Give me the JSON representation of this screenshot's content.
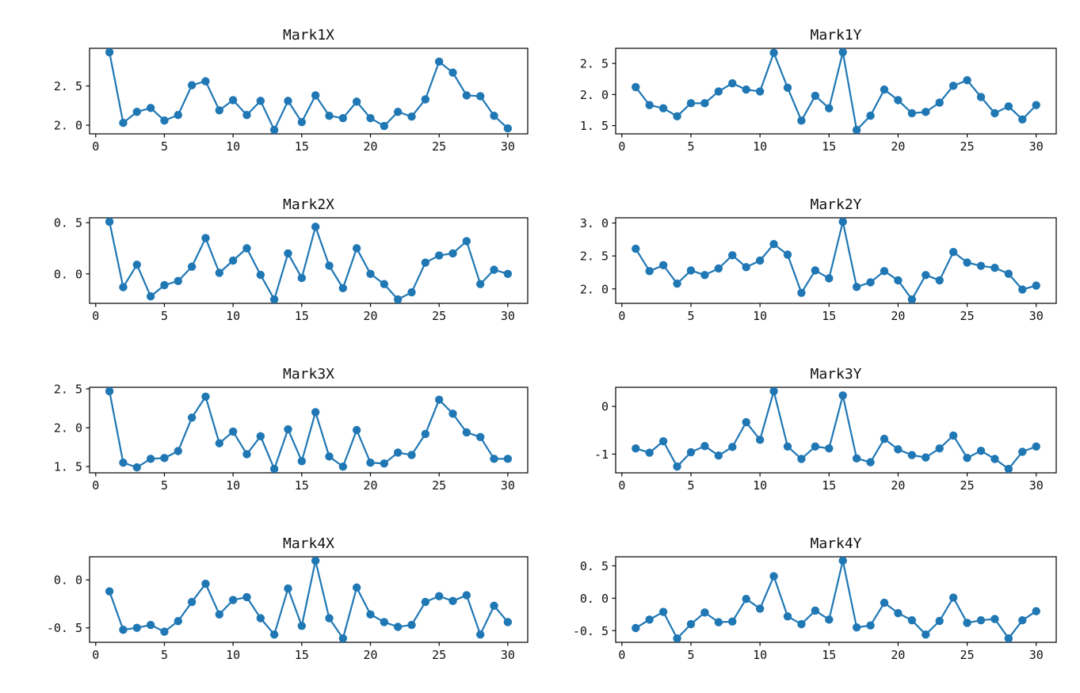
{
  "figure": {
    "background": "#ffffff",
    "accent_color": "#1f77b4",
    "text_color": "#111111"
  },
  "chart_data": [
    {
      "type": "line",
      "title": "Mark1X",
      "marker": "circle",
      "grid": false,
      "legend": null,
      "x": [
        1,
        2,
        3,
        4,
        5,
        6,
        7,
        8,
        9,
        10,
        11,
        12,
        13,
        14,
        15,
        16,
        17,
        18,
        19,
        20,
        21,
        22,
        23,
        24,
        25,
        26,
        27,
        28,
        29,
        30
      ],
      "values": [
        2.93,
        2.03,
        2.17,
        2.22,
        2.06,
        2.13,
        2.51,
        2.56,
        2.19,
        2.32,
        2.13,
        2.31,
        1.94,
        2.31,
        2.04,
        2.38,
        2.12,
        2.09,
        2.3,
        2.09,
        1.99,
        2.17,
        2.11,
        2.33,
        2.81,
        2.67,
        2.38,
        2.37,
        2.12,
        1.96
      ],
      "xlim": [
        -0.45,
        31.45
      ],
      "ylim": [
        1.89,
        2.98
      ],
      "xtick_values": [
        0,
        5,
        10,
        15,
        20,
        25,
        30
      ],
      "xtick_labels": [
        "0",
        "5",
        "10",
        "15",
        "20",
        "25",
        "30"
      ],
      "ytick_values": [
        2.0,
        2.5
      ],
      "ytick_labels": [
        "2. 0",
        "2. 5"
      ]
    },
    {
      "type": "line",
      "title": "Mark1Y",
      "marker": "circle",
      "grid": false,
      "legend": null,
      "x": [
        1,
        2,
        3,
        4,
        5,
        6,
        7,
        8,
        9,
        10,
        11,
        12,
        13,
        14,
        15,
        16,
        17,
        18,
        19,
        20,
        21,
        22,
        23,
        24,
        25,
        26,
        27,
        28,
        29,
        30
      ],
      "values": [
        2.12,
        1.83,
        1.78,
        1.65,
        1.86,
        1.86,
        2.05,
        2.18,
        2.08,
        2.05,
        2.67,
        2.11,
        1.58,
        1.98,
        1.78,
        2.68,
        1.43,
        1.66,
        2.08,
        1.91,
        1.7,
        1.72,
        1.87,
        2.14,
        2.23,
        1.96,
        1.7,
        1.81,
        1.6,
        1.83
      ],
      "xlim": [
        -0.45,
        31.45
      ],
      "ylim": [
        1.368,
        2.743
      ],
      "xtick_values": [
        0,
        5,
        10,
        15,
        20,
        25,
        30
      ],
      "xtick_labels": [
        "0",
        "5",
        "10",
        "15",
        "20",
        "25",
        "30"
      ],
      "ytick_values": [
        1.5,
        2.0,
        2.5
      ],
      "ytick_labels": [
        "1. 5",
        "2. 0",
        "2. 5"
      ]
    },
    {
      "type": "line",
      "title": "Mark2X",
      "marker": "circle",
      "grid": false,
      "legend": null,
      "x": [
        1,
        2,
        3,
        4,
        5,
        6,
        7,
        8,
        9,
        10,
        11,
        12,
        13,
        14,
        15,
        16,
        17,
        18,
        19,
        20,
        21,
        22,
        23,
        24,
        25,
        26,
        27,
        28,
        29,
        30
      ],
      "values": [
        0.51,
        -0.13,
        0.09,
        -0.22,
        -0.11,
        -0.07,
        0.07,
        0.35,
        0.01,
        0.13,
        0.25,
        -0.01,
        -0.25,
        0.2,
        -0.04,
        0.46,
        0.08,
        -0.14,
        0.25,
        0.0,
        -0.1,
        -0.25,
        -0.18,
        0.11,
        0.18,
        0.2,
        0.32,
        -0.1,
        0.04,
        0.0
      ],
      "xlim": [
        -0.45,
        31.45
      ],
      "ylim": [
        -0.288,
        0.548
      ],
      "xtick_values": [
        0,
        5,
        10,
        15,
        20,
        25,
        30
      ],
      "xtick_labels": [
        "0",
        "5",
        "10",
        "15",
        "20",
        "25",
        "30"
      ],
      "ytick_values": [
        0.0,
        0.5
      ],
      "ytick_labels": [
        "0. 0",
        "0. 5"
      ]
    },
    {
      "type": "line",
      "title": "Mark2Y",
      "marker": "circle",
      "grid": false,
      "legend": null,
      "x": [
        1,
        2,
        3,
        4,
        5,
        6,
        7,
        8,
        9,
        10,
        11,
        12,
        13,
        14,
        15,
        16,
        17,
        18,
        19,
        20,
        21,
        22,
        23,
        24,
        25,
        26,
        27,
        28,
        29,
        30
      ],
      "values": [
        2.61,
        2.27,
        2.36,
        2.08,
        2.28,
        2.21,
        2.31,
        2.51,
        2.33,
        2.43,
        2.68,
        2.52,
        1.94,
        2.28,
        2.16,
        3.02,
        2.03,
        2.1,
        2.27,
        2.13,
        1.84,
        2.21,
        2.13,
        2.56,
        2.4,
        2.35,
        2.32,
        2.23,
        1.99,
        2.05
      ],
      "xlim": [
        -0.45,
        31.45
      ],
      "ylim": [
        1.781,
        3.079
      ],
      "xtick_values": [
        0,
        5,
        10,
        15,
        20,
        25,
        30
      ],
      "xtick_labels": [
        "0",
        "5",
        "10",
        "15",
        "20",
        "25",
        "30"
      ],
      "ytick_values": [
        2.0,
        2.5,
        3.0
      ],
      "ytick_labels": [
        "2. 0",
        "2. 5",
        "3. 0"
      ]
    },
    {
      "type": "line",
      "title": "Mark3X",
      "marker": "circle",
      "grid": false,
      "legend": null,
      "x": [
        1,
        2,
        3,
        4,
        5,
        6,
        7,
        8,
        9,
        10,
        11,
        12,
        13,
        14,
        15,
        16,
        17,
        18,
        19,
        20,
        21,
        22,
        23,
        24,
        25,
        26,
        27,
        28,
        29,
        30
      ],
      "values": [
        2.47,
        1.55,
        1.49,
        1.6,
        1.61,
        1.7,
        2.13,
        2.4,
        1.8,
        1.95,
        1.66,
        1.89,
        1.47,
        1.98,
        1.57,
        2.2,
        1.63,
        1.5,
        1.97,
        1.55,
        1.54,
        1.68,
        1.65,
        1.92,
        2.36,
        2.18,
        1.94,
        1.88,
        1.6,
        1.6
      ],
      "xlim": [
        -0.45,
        31.45
      ],
      "ylim": [
        1.42,
        2.52
      ],
      "xtick_values": [
        0,
        5,
        10,
        15,
        20,
        25,
        30
      ],
      "xtick_labels": [
        "0",
        "5",
        "10",
        "15",
        "20",
        "25",
        "30"
      ],
      "ytick_values": [
        1.5,
        2.0,
        2.5
      ],
      "ytick_labels": [
        "1. 5",
        "2. 0",
        "2. 5"
      ]
    },
    {
      "type": "line",
      "title": "Mark3Y",
      "marker": "circle",
      "grid": false,
      "legend": null,
      "x": [
        1,
        2,
        3,
        4,
        5,
        6,
        7,
        8,
        9,
        10,
        11,
        12,
        13,
        14,
        15,
        16,
        17,
        18,
        19,
        20,
        21,
        22,
        23,
        24,
        25,
        26,
        27,
        28,
        29,
        30
      ],
      "values": [
        -0.88,
        -0.97,
        -0.73,
        -1.26,
        -0.96,
        -0.83,
        -1.03,
        -0.85,
        -0.33,
        -0.7,
        0.32,
        -0.84,
        -1.1,
        -0.84,
        -0.88,
        0.23,
        -1.09,
        -1.17,
        -0.68,
        -0.9,
        -1.02,
        -1.07,
        -0.88,
        -0.61,
        -1.08,
        -0.93,
        -1.1,
        -1.31,
        -0.95,
        -0.84
      ],
      "xlim": [
        -0.45,
        31.45
      ],
      "ylim": [
        -1.392,
        0.402
      ],
      "xtick_values": [
        0,
        5,
        10,
        15,
        20,
        25,
        30
      ],
      "xtick_labels": [
        "0",
        "5",
        "10",
        "15",
        "20",
        "25",
        "30"
      ],
      "ytick_values": [
        -1,
        0
      ],
      "ytick_labels": [
        "-1",
        "0"
      ]
    },
    {
      "type": "line",
      "title": "Mark4X",
      "marker": "circle",
      "grid": false,
      "legend": null,
      "x": [
        1,
        2,
        3,
        4,
        5,
        6,
        7,
        8,
        9,
        10,
        11,
        12,
        13,
        14,
        15,
        16,
        17,
        18,
        19,
        20,
        21,
        22,
        23,
        24,
        25,
        26,
        27,
        28,
        29,
        30
      ],
      "values": [
        -0.12,
        -0.52,
        -0.5,
        -0.47,
        -0.54,
        -0.43,
        -0.23,
        -0.04,
        -0.36,
        -0.21,
        -0.18,
        -0.4,
        -0.57,
        -0.09,
        -0.48,
        0.2,
        -0.4,
        -0.61,
        -0.08,
        -0.36,
        -0.44,
        -0.49,
        -0.47,
        -0.23,
        -0.17,
        -0.22,
        -0.16,
        -0.57,
        -0.27,
        -0.44
      ],
      "xlim": [
        -0.45,
        31.45
      ],
      "ylim": [
        -0.651,
        0.241
      ],
      "xtick_values": [
        0,
        5,
        10,
        15,
        20,
        25,
        30
      ],
      "xtick_labels": [
        "0",
        "5",
        "10",
        "15",
        "20",
        "25",
        "30"
      ],
      "ytick_values": [
        -0.5,
        0.0
      ],
      "ytick_labels": [
        "-0. 5",
        "0. 0"
      ]
    },
    {
      "type": "line",
      "title": "Mark4Y",
      "marker": "circle",
      "grid": false,
      "legend": null,
      "x": [
        1,
        2,
        3,
        4,
        5,
        6,
        7,
        8,
        9,
        10,
        11,
        12,
        13,
        14,
        15,
        16,
        17,
        18,
        19,
        20,
        21,
        22,
        23,
        24,
        25,
        26,
        27,
        28,
        29,
        30
      ],
      "values": [
        -0.46,
        -0.33,
        -0.21,
        -0.62,
        -0.4,
        -0.22,
        -0.37,
        -0.36,
        -0.01,
        -0.16,
        0.34,
        -0.28,
        -0.4,
        -0.19,
        -0.33,
        0.58,
        -0.45,
        -0.42,
        -0.07,
        -0.23,
        -0.34,
        -0.56,
        -0.35,
        0.01,
        -0.38,
        -0.34,
        -0.32,
        -0.62,
        -0.34,
        -0.2
      ],
      "xlim": [
        -0.45,
        31.45
      ],
      "ylim": [
        -0.68,
        0.64
      ],
      "xtick_values": [
        0,
        5,
        10,
        15,
        20,
        25,
        30
      ],
      "xtick_labels": [
        "0",
        "5",
        "10",
        "15",
        "20",
        "25",
        "30"
      ],
      "ytick_values": [
        -0.5,
        0.0,
        0.5
      ],
      "ytick_labels": [
        "-0. 5",
        "0. 0",
        "0. 5"
      ]
    }
  ]
}
